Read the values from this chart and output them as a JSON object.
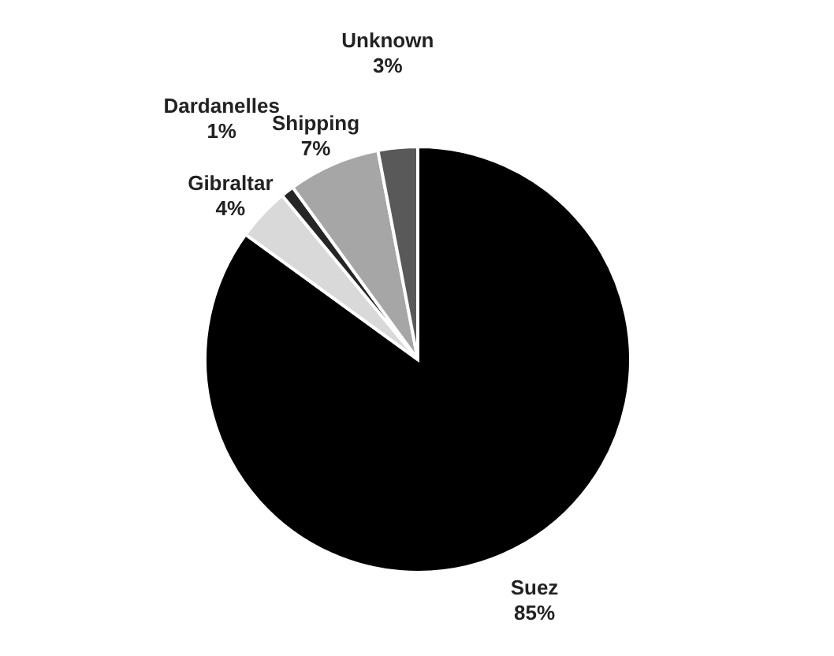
{
  "chart_data": {
    "type": "pie",
    "categories": [
      "Suez",
      "Gibraltar",
      "Dardanelles",
      "Shipping",
      "Unknown"
    ],
    "values": [
      85,
      4,
      1,
      7,
      3
    ],
    "value_labels": [
      "85%",
      "4%",
      "1%",
      "7%",
      "3%"
    ],
    "colors": [
      "#000000",
      "#d9d9d9",
      "#262626",
      "#a6a6a6",
      "#595959"
    ],
    "legend": false
  }
}
